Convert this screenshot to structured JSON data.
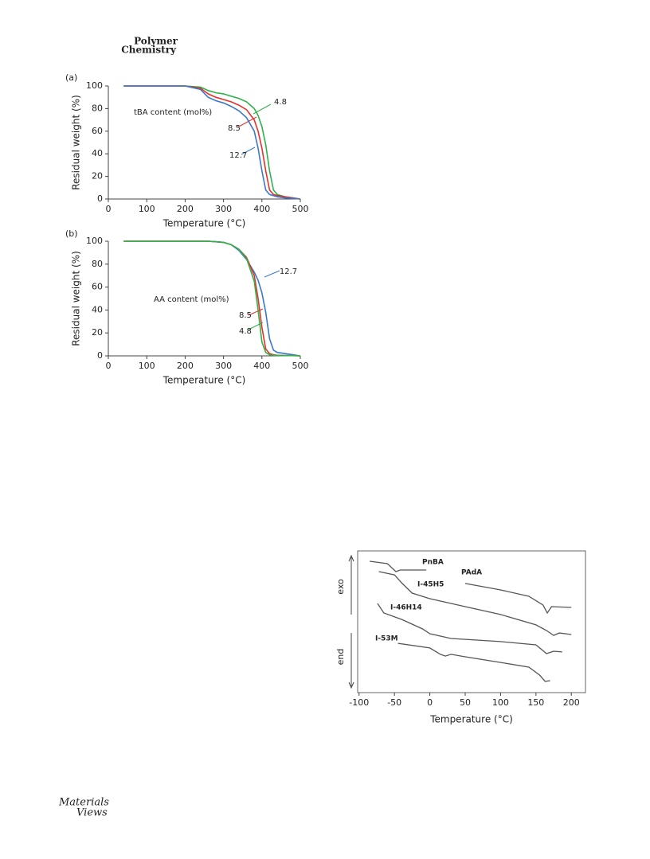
{
  "header": {
    "journal_line1": "Polymer",
    "journal_line2": "Chemistry"
  },
  "footer": {
    "logo_line1": "Materials",
    "logo_line2": "Views"
  },
  "chart_data": [
    {
      "type": "line",
      "panel_label": "(a)",
      "xlabel": "Temperature (°C)",
      "ylabel": "Residual weight (%)",
      "annotation": "tBA content (mol%)",
      "x": [
        40,
        100,
        200,
        240,
        260,
        280,
        300,
        320,
        340,
        360,
        380,
        390,
        400,
        410,
        420,
        430,
        440,
        460,
        480,
        500
      ],
      "series": [
        {
          "name": "4.8",
          "color": "#2db34a",
          "values": [
            100,
            100,
            100,
            99,
            96,
            94,
            93,
            91,
            89,
            86,
            80,
            74,
            64,
            48,
            25,
            8,
            4,
            2,
            1,
            0
          ]
        },
        {
          "name": "8.5",
          "color": "#e8302a",
          "values": [
            100,
            100,
            100,
            98,
            93,
            90,
            88,
            86,
            83,
            79,
            70,
            60,
            45,
            25,
            8,
            4,
            3,
            2,
            1,
            0
          ]
        },
        {
          "name": "12.7",
          "color": "#3a78c9",
          "values": [
            100,
            100,
            100,
            97,
            90,
            87,
            85,
            82,
            78,
            72,
            60,
            45,
            25,
            8,
            4,
            3,
            2,
            1,
            0.5,
            0
          ]
        }
      ],
      "xlim": [
        0,
        500
      ],
      "xticks": [
        0,
        100,
        200,
        300,
        400,
        500
      ],
      "ylim": [
        0,
        100
      ],
      "yticks": [
        0,
        20,
        40,
        60,
        80,
        100
      ]
    },
    {
      "type": "line",
      "panel_label": "(b)",
      "xlabel": "Temperature (°C)",
      "ylabel": "Residual weight (%)",
      "annotation": "AA content (mol%)",
      "x": [
        40,
        100,
        200,
        240,
        260,
        280,
        300,
        320,
        340,
        360,
        380,
        390,
        400,
        410,
        420,
        430,
        440,
        460,
        480,
        500
      ],
      "series": [
        {
          "name": "12.7",
          "color": "#3a78c9",
          "values": [
            100,
            100,
            100,
            100,
            100,
            99.5,
            99,
            97,
            92,
            84,
            73,
            66,
            55,
            38,
            15,
            5,
            3,
            2,
            1,
            0
          ]
        },
        {
          "name": "8.5",
          "color": "#e8302a",
          "values": [
            100,
            100,
            100,
            100,
            100,
            99.5,
            99,
            97,
            93,
            86,
            70,
            50,
            25,
            6,
            2,
            1,
            0.5,
            0.3,
            0.2,
            0
          ]
        },
        {
          "name": "4.8",
          "color": "#2db34a",
          "values": [
            100,
            100,
            100,
            100,
            100,
            99.5,
            99,
            97,
            93,
            85,
            65,
            40,
            12,
            3,
            1,
            0.5,
            0.5,
            0.3,
            0.2,
            0
          ]
        }
      ],
      "xlim": [
        0,
        500
      ],
      "xticks": [
        0,
        100,
        200,
        300,
        400,
        500
      ],
      "ylim": [
        0,
        100
      ],
      "yticks": [
        0,
        20,
        40,
        60,
        80,
        100
      ]
    },
    {
      "type": "line",
      "xlabel": "Temperature (°C)",
      "ylabel_top": "exo",
      "ylabel_bottom": "end",
      "series": [
        {
          "name": "PnBA",
          "color": "#555555",
          "x": [
            -85,
            -60,
            -48,
            -42,
            -30,
            -5
          ],
          "values": [
            92.7,
            91.0,
            85.4,
            86.5,
            86.5,
            86.5
          ]
        },
        {
          "name": "PAdA",
          "color": "#555555",
          "x": [
            50,
            100,
            140,
            160,
            166,
            172,
            200
          ],
          "values": [
            77.0,
            72.5,
            68.0,
            61.8,
            56.2,
            60.7,
            60.1
          ]
        },
        {
          "name": "I-45H5",
          "color": "#555555",
          "x": [
            -72,
            -50,
            -40,
            -25,
            0,
            50,
            100,
            150,
            165,
            175,
            183,
            200
          ],
          "values": [
            85.4,
            83.1,
            77.5,
            70.2,
            66.3,
            60.7,
            55.1,
            47.8,
            43.8,
            40.4,
            42.1,
            41.0
          ]
        },
        {
          "name": "I-46H14",
          "color": "#555555",
          "x": [
            -74,
            -65,
            -40,
            -10,
            0,
            30,
            100,
            150,
            165,
            175,
            187
          ],
          "values": [
            62.9,
            56.2,
            51.7,
            44.9,
            41.6,
            38.2,
            36.0,
            33.7,
            27.5,
            29.2,
            28.7
          ]
        },
        {
          "name": "I-53M",
          "color": "#555555",
          "x": [
            -45,
            0,
            15,
            22,
            30,
            50,
            100,
            140,
            155,
            163,
            170
          ],
          "values": [
            34.8,
            31.5,
            27.0,
            25.8,
            27.0,
            25.3,
            21.3,
            18.0,
            12.4,
            7.9,
            8.4
          ]
        }
      ],
      "xlim": [
        -102,
        220
      ],
      "xticks": [
        -100,
        -50,
        0,
        50,
        100,
        150,
        200
      ],
      "ylim": [
        0,
        100
      ]
    }
  ]
}
